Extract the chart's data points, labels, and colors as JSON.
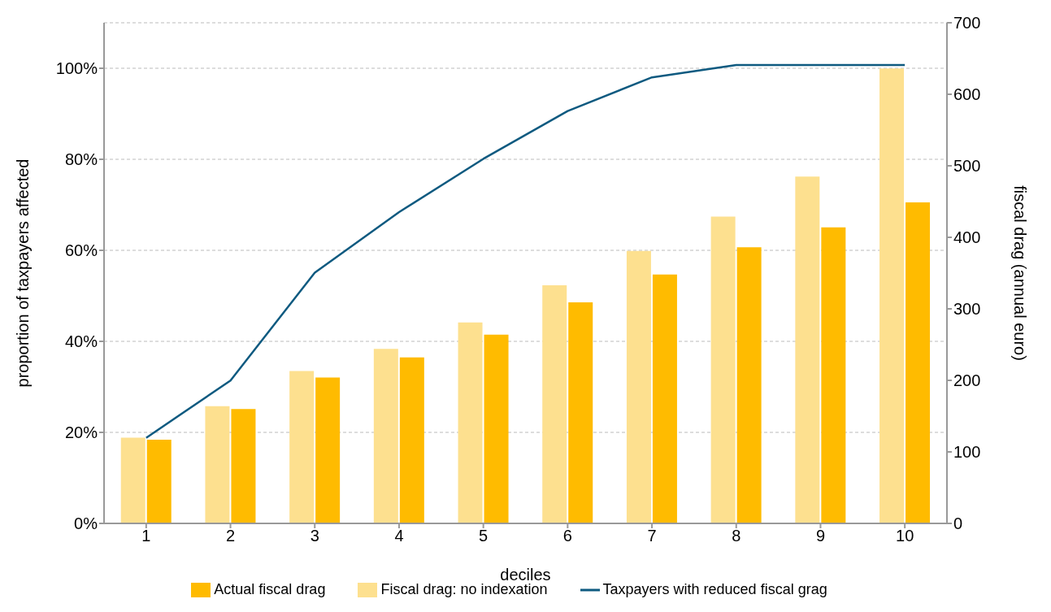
{
  "chart_data": {
    "type": "bar",
    "xlabel": "deciles",
    "ylabel": "proportion of taxpayers affected",
    "y2label": "fiscal drag (annual euro)",
    "categories": [
      "1",
      "2",
      "3",
      "4",
      "5",
      "6",
      "7",
      "8",
      "9",
      "10"
    ],
    "series": [
      {
        "name": "Fiscal drag: no indexation",
        "color": "#fde08f",
        "axis": "y2",
        "values": [
          120,
          164,
          213,
          244,
          281,
          333,
          381,
          429,
          485,
          636
        ]
      },
      {
        "name": "Actual fiscal drag",
        "color": "#ffbb00",
        "axis": "y2",
        "values": [
          117,
          160,
          204,
          232,
          264,
          309,
          348,
          386,
          414,
          449
        ]
      },
      {
        "name": "Taxpayers with reduced fiscal grag",
        "type": "line",
        "color": "#0e5a80",
        "values": [
          18.8,
          31.4,
          55.1,
          68.4,
          80.1,
          90.6,
          98.0,
          100.7,
          100.7,
          100.7
        ]
      }
    ],
    "ylim": [
      0,
      110
    ],
    "yticks": [
      {
        "value": 0,
        "label": "0%"
      },
      {
        "value": 20,
        "label": "20%"
      },
      {
        "value": 40,
        "label": "40%"
      },
      {
        "value": 60,
        "label": "60%"
      },
      {
        "value": 80,
        "label": "80%"
      },
      {
        "value": 100,
        "label": "100%"
      }
    ],
    "y2lim": [
      0,
      700
    ],
    "y2ticks": [
      0,
      100,
      200,
      300,
      400,
      500,
      600,
      700
    ],
    "grid": "y",
    "legend": "bottom",
    "marker": "none",
    "line_style": "solid"
  }
}
